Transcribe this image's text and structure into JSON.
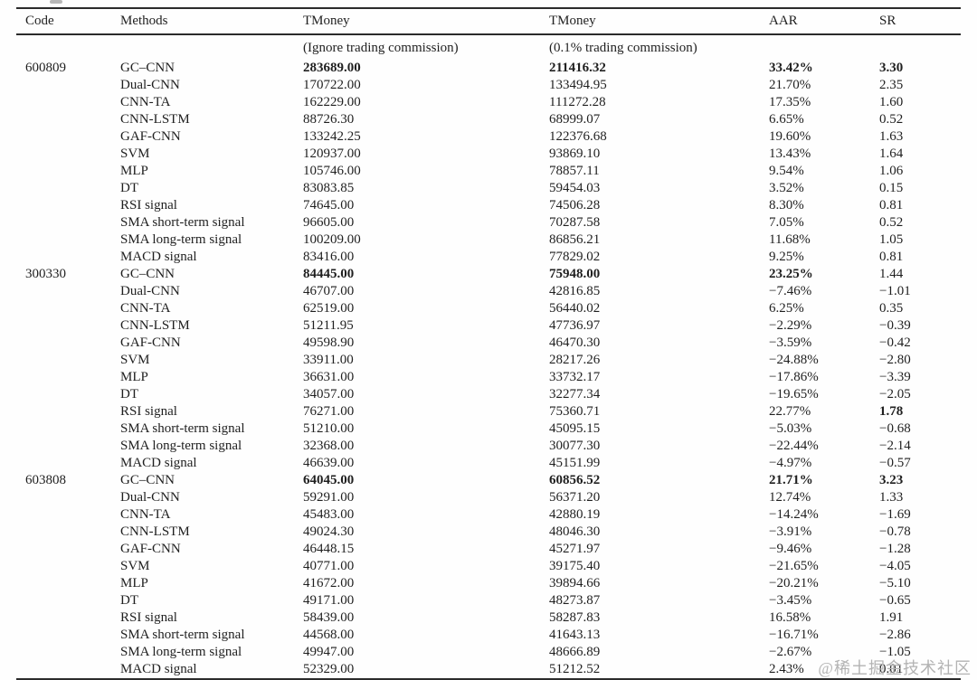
{
  "watermark": "@稀土掘金技术社区",
  "table": {
    "headers": [
      "Code",
      "Methods",
      "TMoney",
      "TMoney",
      "AAR",
      "SR"
    ],
    "subheaders": [
      "",
      "",
      "(Ignore trading commission)",
      "(0.1% trading commission)",
      "",
      ""
    ],
    "groups": [
      {
        "code": "600809",
        "rows": [
          {
            "method": "GC–CNN",
            "tmoney_nc": "283689.00",
            "tmoney_c": "211416.32",
            "aar": "33.42%",
            "sr": "3.30",
            "bold": [
              "tmoney_nc",
              "tmoney_c",
              "aar",
              "sr"
            ]
          },
          {
            "method": "Dual-CNN",
            "tmoney_nc": "170722.00",
            "tmoney_c": "133494.95",
            "aar": "21.70%",
            "sr": "2.35",
            "bold": []
          },
          {
            "method": "CNN-TA",
            "tmoney_nc": "162229.00",
            "tmoney_c": "111272.28",
            "aar": "17.35%",
            "sr": "1.60",
            "bold": []
          },
          {
            "method": "CNN-LSTM",
            "tmoney_nc": "88726.30",
            "tmoney_c": "68999.07",
            "aar": "6.65%",
            "sr": "0.52",
            "bold": []
          },
          {
            "method": "GAF-CNN",
            "tmoney_nc": "133242.25",
            "tmoney_c": "122376.68",
            "aar": "19.60%",
            "sr": "1.63",
            "bold": []
          },
          {
            "method": "SVM",
            "tmoney_nc": "120937.00",
            "tmoney_c": "93869.10",
            "aar": "13.43%",
            "sr": "1.64",
            "bold": []
          },
          {
            "method": "MLP",
            "tmoney_nc": "105746.00",
            "tmoney_c": "78857.11",
            "aar": "9.54%",
            "sr": "1.06",
            "bold": []
          },
          {
            "method": "DT",
            "tmoney_nc": "83083.85",
            "tmoney_c": "59454.03",
            "aar": "3.52%",
            "sr": "0.15",
            "bold": []
          },
          {
            "method": "RSI signal",
            "tmoney_nc": "74645.00",
            "tmoney_c": "74506.28",
            "aar": "8.30%",
            "sr": "0.81",
            "bold": []
          },
          {
            "method": "SMA short-term signal",
            "tmoney_nc": "96605.00",
            "tmoney_c": "70287.58",
            "aar": "7.05%",
            "sr": "0.52",
            "bold": []
          },
          {
            "method": "SMA long-term signal",
            "tmoney_nc": "100209.00",
            "tmoney_c": "86856.21",
            "aar": "11.68%",
            "sr": "1.05",
            "bold": []
          },
          {
            "method": "MACD signal",
            "tmoney_nc": "83416.00",
            "tmoney_c": "77829.02",
            "aar": "9.25%",
            "sr": "0.81",
            "bold": []
          }
        ]
      },
      {
        "code": "300330",
        "rows": [
          {
            "method": "GC–CNN",
            "tmoney_nc": "84445.00",
            "tmoney_c": "75948.00",
            "aar": "23.25%",
            "sr": "1.44",
            "bold": [
              "tmoney_nc",
              "tmoney_c",
              "aar"
            ]
          },
          {
            "method": "Dual-CNN",
            "tmoney_nc": "46707.00",
            "tmoney_c": "42816.85",
            "aar": "−7.46%",
            "sr": "−1.01",
            "bold": []
          },
          {
            "method": "CNN-TA",
            "tmoney_nc": "62519.00",
            "tmoney_c": "56440.02",
            "aar": "6.25%",
            "sr": "0.35",
            "bold": []
          },
          {
            "method": "CNN-LSTM",
            "tmoney_nc": "51211.95",
            "tmoney_c": "47736.97",
            "aar": "−2.29%",
            "sr": "−0.39",
            "bold": []
          },
          {
            "method": "GAF-CNN",
            "tmoney_nc": "49598.90",
            "tmoney_c": "46470.30",
            "aar": "−3.59%",
            "sr": "−0.42",
            "bold": []
          },
          {
            "method": "SVM",
            "tmoney_nc": "33911.00",
            "tmoney_c": "28217.26",
            "aar": "−24.88%",
            "sr": "−2.80",
            "bold": []
          },
          {
            "method": "MLP",
            "tmoney_nc": "36631.00",
            "tmoney_c": "33732.17",
            "aar": "−17.86%",
            "sr": "−3.39",
            "bold": []
          },
          {
            "method": "DT",
            "tmoney_nc": "34057.00",
            "tmoney_c": "32277.34",
            "aar": "−19.65%",
            "sr": "−2.05",
            "bold": []
          },
          {
            "method": "RSI signal",
            "tmoney_nc": "76271.00",
            "tmoney_c": "75360.71",
            "aar": "22.77%",
            "sr": "1.78",
            "bold": [
              "sr"
            ]
          },
          {
            "method": "SMA short-term signal",
            "tmoney_nc": "51210.00",
            "tmoney_c": "45095.15",
            "aar": "−5.03%",
            "sr": "−0.68",
            "bold": []
          },
          {
            "method": "SMA long-term signal",
            "tmoney_nc": "32368.00",
            "tmoney_c": "30077.30",
            "aar": "−22.44%",
            "sr": "−2.14",
            "bold": []
          },
          {
            "method": "MACD signal",
            "tmoney_nc": "46639.00",
            "tmoney_c": "45151.99",
            "aar": "−4.97%",
            "sr": "−0.57",
            "bold": []
          }
        ]
      },
      {
        "code": "603808",
        "rows": [
          {
            "method": "GC–CNN",
            "tmoney_nc": "64045.00",
            "tmoney_c": "60856.52",
            "aar": "21.71%",
            "sr": "3.23",
            "bold": [
              "tmoney_nc",
              "tmoney_c",
              "aar",
              "sr"
            ]
          },
          {
            "method": "Dual-CNN",
            "tmoney_nc": "59291.00",
            "tmoney_c": "56371.20",
            "aar": "12.74%",
            "sr": "1.33",
            "bold": []
          },
          {
            "method": "CNN-TA",
            "tmoney_nc": "45483.00",
            "tmoney_c": "42880.19",
            "aar": "−14.24%",
            "sr": "−1.69",
            "bold": []
          },
          {
            "method": "CNN-LSTM",
            "tmoney_nc": "49024.30",
            "tmoney_c": "48046.30",
            "aar": "−3.91%",
            "sr": "−0.78",
            "bold": []
          },
          {
            "method": "GAF-CNN",
            "tmoney_nc": "46448.15",
            "tmoney_c": "45271.97",
            "aar": "−9.46%",
            "sr": "−1.28",
            "bold": []
          },
          {
            "method": "SVM",
            "tmoney_nc": "40771.00",
            "tmoney_c": "39175.40",
            "aar": "−21.65%",
            "sr": "−4.05",
            "bold": []
          },
          {
            "method": "MLP",
            "tmoney_nc": "41672.00",
            "tmoney_c": "39894.66",
            "aar": "−20.21%",
            "sr": "−5.10",
            "bold": []
          },
          {
            "method": "DT",
            "tmoney_nc": "49171.00",
            "tmoney_c": "48273.87",
            "aar": "−3.45%",
            "sr": "−0.65",
            "bold": []
          },
          {
            "method": "RSI signal",
            "tmoney_nc": "58439.00",
            "tmoney_c": "58287.83",
            "aar": "16.58%",
            "sr": "1.91",
            "bold": []
          },
          {
            "method": "SMA short-term signal",
            "tmoney_nc": "44568.00",
            "tmoney_c": "41643.13",
            "aar": "−16.71%",
            "sr": "−2.86",
            "bold": []
          },
          {
            "method": "SMA long-term signal",
            "tmoney_nc": "49947.00",
            "tmoney_c": "48666.89",
            "aar": "−2.67%",
            "sr": "−1.05",
            "bold": []
          },
          {
            "method": "MACD signal",
            "tmoney_nc": "52329.00",
            "tmoney_c": "51212.52",
            "aar": "2.43%",
            "sr": "0.01",
            "bold": []
          }
        ]
      }
    ]
  }
}
